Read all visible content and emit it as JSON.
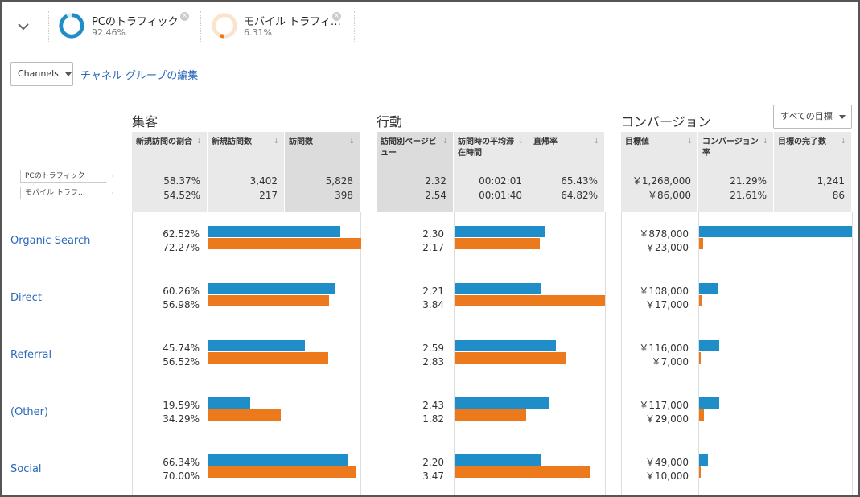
{
  "colors": {
    "pc": "#1f8dc7",
    "mobile": "#ec7a1c",
    "link": "#2a68b9"
  },
  "segments": [
    {
      "name": "PCのトラフィック",
      "pct": "92.46%",
      "fraction": 0.9246,
      "icon": "donut-icon"
    },
    {
      "name": "モバイル トラフィ…",
      "pct": "6.31%",
      "fraction": 0.0631,
      "icon": "donut-icon"
    }
  ],
  "toolbar": {
    "dimension_select": "Channels",
    "edit_link": "チャネル グループの編集"
  },
  "groups": {
    "acquisition": "集客",
    "behavior": "行動",
    "conversions": "コンバージョン",
    "goal_select": "すべての目標"
  },
  "headers": {
    "new_sessions_pct": "新規訪問の割合",
    "new_users": "新規訪問数",
    "sessions": "訪問数",
    "pages_per_session": "訪問別ページビュー",
    "avg_duration": "訪問時の平均滞在時間",
    "bounce_rate": "直帰率",
    "goal_value": "目標値",
    "conv_rate": "コンバージョン率",
    "goal_completions": "目標の完了数"
  },
  "totals": {
    "segment_tags": [
      "PCのトラフィック",
      "モバイル トラフ…"
    ],
    "pc": {
      "new_sessions_pct": "58.37%",
      "new_users": "3,402",
      "sessions": "5,828",
      "pages_per_session": "2.32",
      "avg_duration": "00:02:01",
      "bounce_rate": "65.43%",
      "goal_value": "￥1,268,000",
      "conv_rate": "21.29%",
      "goal_completions": "1,241"
    },
    "mobile": {
      "new_sessions_pct": "54.52%",
      "new_users": "217",
      "sessions": "398",
      "pages_per_session": "2.54",
      "avg_duration": "00:01:40",
      "bounce_rate": "64.82%",
      "goal_value": "￥86,000",
      "conv_rate": "21.61%",
      "goal_completions": "86"
    }
  },
  "rows": [
    {
      "channel": "Organic Search",
      "acq": {
        "pc": "62.52%",
        "mobile": "72.27%"
      },
      "beh": {
        "pc": "2.30",
        "mobile": "2.17"
      },
      "conv": {
        "pc": "￥878,000",
        "mobile": "￥23,000"
      }
    },
    {
      "channel": "Direct",
      "acq": {
        "pc": "60.26%",
        "mobile": "56.98%"
      },
      "beh": {
        "pc": "2.21",
        "mobile": "3.84"
      },
      "conv": {
        "pc": "￥108,000",
        "mobile": "￥17,000"
      }
    },
    {
      "channel": "Referral",
      "acq": {
        "pc": "45.74%",
        "mobile": "56.52%"
      },
      "beh": {
        "pc": "2.59",
        "mobile": "2.83"
      },
      "conv": {
        "pc": "￥116,000",
        "mobile": "￥7,000"
      }
    },
    {
      "channel": "(Other)",
      "acq": {
        "pc": "19.59%",
        "mobile": "34.29%"
      },
      "beh": {
        "pc": "2.43",
        "mobile": "1.82"
      },
      "conv": {
        "pc": "￥117,000",
        "mobile": "￥29,000"
      }
    },
    {
      "channel": "Social",
      "acq": {
        "pc": "66.34%",
        "mobile": "70.00%"
      },
      "beh": {
        "pc": "2.20",
        "mobile": "3.47"
      },
      "conv": {
        "pc": "￥49,000",
        "mobile": "￥10,000"
      }
    }
  ]
}
